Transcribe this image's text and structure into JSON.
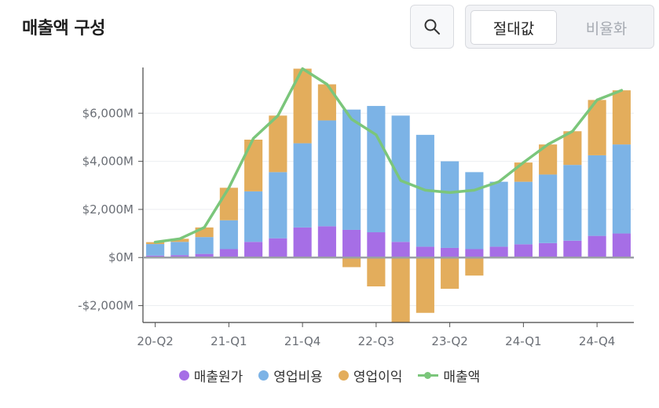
{
  "header": {
    "title": "매출액 구성"
  },
  "toolbar": {
    "search_icon": "search-icon",
    "toggle_options": [
      {
        "label": "절대값",
        "active": true
      },
      {
        "label": "비율화",
        "active": false
      }
    ]
  },
  "chart_data": {
    "type": "bar",
    "stacked": true,
    "title": "",
    "xlabel": "",
    "ylabel": "",
    "ylim": [
      -2700,
      7900
    ],
    "yticks": [
      -2000,
      0,
      2000,
      4000,
      6000
    ],
    "ytick_labels": [
      "-$2,000M",
      "$0M",
      "$2,000M",
      "$4,000M",
      "$6,000M"
    ],
    "x_tick_labels": [
      "20-Q2",
      "21-Q1",
      "21-Q4",
      "22-Q3",
      "23-Q2",
      "24-Q1",
      "24-Q4"
    ],
    "categories": [
      "20-Q2",
      "20-Q3",
      "20-Q4",
      "21-Q1",
      "21-Q2",
      "21-Q3",
      "21-Q4",
      "22-Q1",
      "22-Q2",
      "22-Q3",
      "22-Q4",
      "23-Q1",
      "23-Q2",
      "23-Q3",
      "23-Q4",
      "24-Q1",
      "24-Q2",
      "24-Q3",
      "24-Q4",
      "25-Q1"
    ],
    "series": [
      {
        "name": "매출원가",
        "color": "#a66ee6",
        "values": [
          80,
          100,
          150,
          350,
          650,
          800,
          1250,
          1300,
          1150,
          1050,
          650,
          450,
          400,
          350,
          450,
          550,
          600,
          700,
          900,
          1000
        ]
      },
      {
        "name": "영업비용",
        "color": "#7cb3e6",
        "values": [
          480,
          550,
          700,
          1200,
          2100,
          2750,
          3500,
          4400,
          5000,
          5250,
          5250,
          4650,
          3600,
          3200,
          2700,
          2600,
          2850,
          3150,
          3350,
          3700
        ]
      },
      {
        "name": "영업이익",
        "color": "#e3ad5c",
        "values": [
          80,
          130,
          400,
          1350,
          2150,
          2350,
          3100,
          1500,
          -400,
          -1200,
          -2700,
          -2300,
          -1300,
          -750,
          0,
          800,
          1250,
          1400,
          2300,
          2250
        ]
      },
      {
        "name": "매출액",
        "type": "line",
        "color": "#7bc67b",
        "values": [
          640,
          780,
          1250,
          2900,
          4950,
          5900,
          7850,
          7200,
          5750,
          5100,
          3200,
          2800,
          2700,
          2800,
          3150,
          3950,
          4700,
          5250,
          6550,
          6950
        ]
      }
    ],
    "legend_position": "bottom",
    "grid": true
  }
}
